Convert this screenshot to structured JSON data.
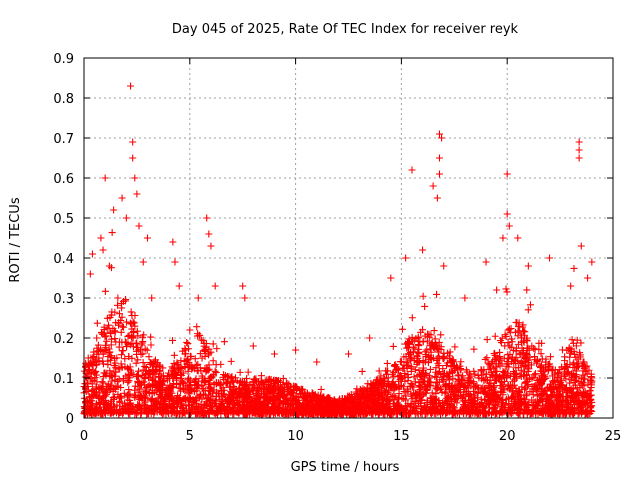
{
  "chart_data": {
    "type": "scatter",
    "title": "Day 045 of 2025, Rate Of TEC Index for receiver reyk",
    "xlabel": "GPS time / hours",
    "ylabel": "ROTI / TECUs",
    "xlim": [
      0,
      25
    ],
    "ylim": [
      0,
      0.9
    ],
    "x_ticks": [
      "0",
      "5",
      "10",
      "15",
      "20",
      "25"
    ],
    "y_ticks": [
      "0",
      "0.1",
      "0.2",
      "0.3",
      "0.4",
      "0.5",
      "0.6",
      "0.7",
      "0.8",
      "0.9"
    ],
    "grid": true,
    "marker": "+",
    "color": "#ff0000",
    "series": [
      {
        "points": [
          [
            0.1,
            0.04
          ],
          [
            0.2,
            0.15
          ],
          [
            0.3,
            0.36
          ],
          [
            0.4,
            0.41
          ],
          [
            0.6,
            0.2
          ],
          [
            0.8,
            0.45
          ],
          [
            0.9,
            0.42
          ],
          [
            1.0,
            0.6
          ],
          [
            1.2,
            0.38
          ],
          [
            1.4,
            0.52
          ],
          [
            1.6,
            0.3
          ],
          [
            1.8,
            0.55
          ],
          [
            2.0,
            0.5
          ],
          [
            2.2,
            0.83
          ],
          [
            2.3,
            0.69
          ],
          [
            2.3,
            0.65
          ],
          [
            2.4,
            0.6
          ],
          [
            2.5,
            0.56
          ],
          [
            2.6,
            0.48
          ],
          [
            2.8,
            0.39
          ],
          [
            3.0,
            0.45
          ],
          [
            3.2,
            0.3
          ],
          [
            4.2,
            0.44
          ],
          [
            4.3,
            0.39
          ],
          [
            4.5,
            0.33
          ],
          [
            5.0,
            0.22
          ],
          [
            5.4,
            0.3
          ],
          [
            5.8,
            0.5
          ],
          [
            5.9,
            0.46
          ],
          [
            6.0,
            0.43
          ],
          [
            6.2,
            0.33
          ],
          [
            7.5,
            0.33
          ],
          [
            7.6,
            0.3
          ],
          [
            8.0,
            0.18
          ],
          [
            9.0,
            0.16
          ],
          [
            10.0,
            0.17
          ],
          [
            11.0,
            0.14
          ],
          [
            12.5,
            0.16
          ],
          [
            13.5,
            0.2
          ],
          [
            14.5,
            0.35
          ],
          [
            15.2,
            0.4
          ],
          [
            15.5,
            0.62
          ],
          [
            16.0,
            0.42
          ],
          [
            16.5,
            0.58
          ],
          [
            16.8,
            0.71
          ],
          [
            16.9,
            0.7
          ],
          [
            16.8,
            0.65
          ],
          [
            16.8,
            0.61
          ],
          [
            16.7,
            0.55
          ],
          [
            17.0,
            0.38
          ],
          [
            18.0,
            0.3
          ],
          [
            19.0,
            0.39
          ],
          [
            19.5,
            0.32
          ],
          [
            19.8,
            0.45
          ],
          [
            20.0,
            0.61
          ],
          [
            20.0,
            0.51
          ],
          [
            20.1,
            0.48
          ],
          [
            20.5,
            0.45
          ],
          [
            21.0,
            0.38
          ],
          [
            22.0,
            0.4
          ],
          [
            23.0,
            0.33
          ],
          [
            23.4,
            0.69
          ],
          [
            23.4,
            0.67
          ],
          [
            23.4,
            0.65
          ],
          [
            23.5,
            0.43
          ],
          [
            23.8,
            0.35
          ],
          [
            24.0,
            0.39
          ]
        ]
      }
    ]
  }
}
